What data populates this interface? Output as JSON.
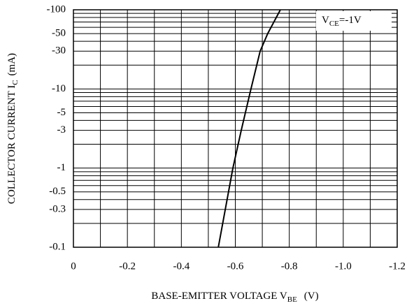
{
  "chart_data": {
    "type": "line",
    "y_label": {
      "main": "COLLECTOR CURRENT I",
      "sub": "C",
      "unit": "(mA)"
    },
    "x_label": {
      "main": "BASE-EMITTER VOLTAGE V",
      "sub": "BE",
      "unit": "(V)"
    },
    "annotation": {
      "main": "V",
      "sub": "CE",
      "rest": "=-1V"
    },
    "log_y": true,
    "grid": true,
    "xlim": [
      0,
      -1.2
    ],
    "xticks": [
      0,
      -0.2,
      -0.4,
      -0.6,
      -0.8,
      {
        "value": -1,
        "label": "-1.0"
      },
      -1.2
    ],
    "x_minor_grid": [
      -0.1,
      -0.3,
      -0.5,
      -0.7,
      -0.9,
      -1.1
    ],
    "ylim": [
      -0.1,
      -100
    ],
    "yticks": [
      -100,
      -50,
      -30,
      -10,
      -5,
      -3,
      -1,
      -0.5,
      -0.3,
      -0.1
    ],
    "y_minor_grid": [
      -0.2,
      -0.4,
      -0.6,
      -0.7,
      -0.8,
      -0.9,
      -2,
      -4,
      -6,
      -7,
      -8,
      -9,
      -20,
      -40,
      -60,
      -70,
      -80,
      -90
    ],
    "series": [
      {
        "color": "#000000",
        "x": [
          -0.537,
          -0.591,
          -0.622,
          -0.658,
          -0.692,
          -0.72,
          -0.767
        ],
        "values": [
          -0.1,
          -1,
          -3,
          -10,
          -30,
          -50,
          -100
        ]
      }
    ]
  }
}
